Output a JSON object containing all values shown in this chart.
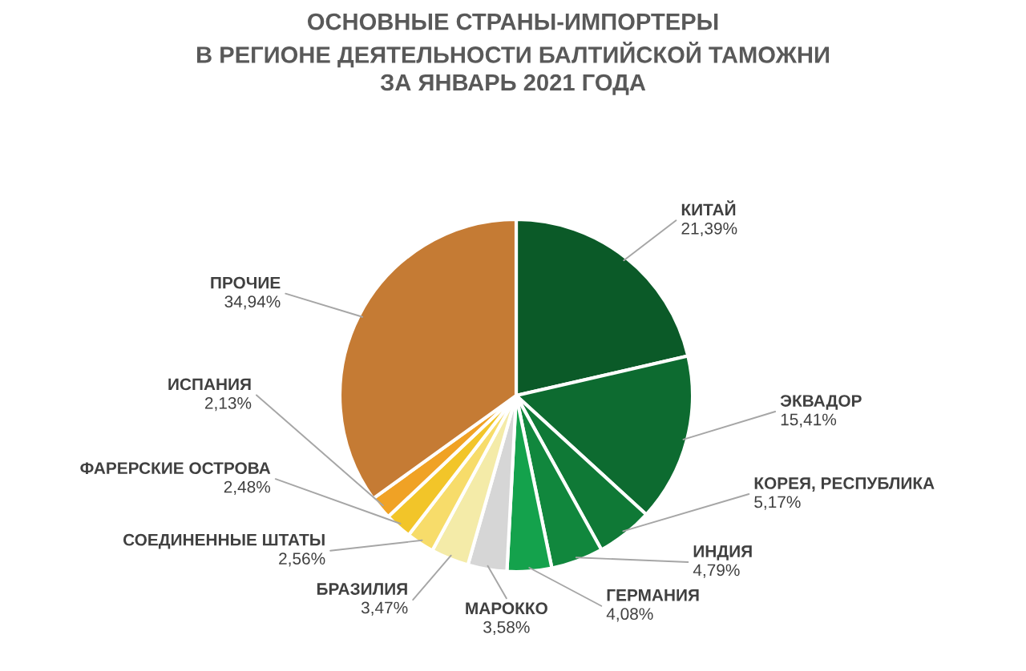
{
  "chart_data": {
    "type": "pie",
    "title": "ОСНОВНЫЕ СТРАНЫ-ИМПОРТЕРЫ\nВ РЕГИОНЕ ДЕЯТЕЛЬНОСТИ БАЛТИЙСКОЙ ТАМОЖНИ\nЗА ЯНВАРЬ 2021 ГОДА",
    "categories": [
      "КИТАЙ",
      "ЭКВАДОР",
      "КОРЕЯ, РЕСПУБЛИКА",
      "ИНДИЯ",
      "ГЕРМАНИЯ",
      "МАРОККО",
      "БРАЗИЛИЯ",
      "СОЕДИНЕННЫЕ ШТАТЫ",
      "ФАРЕРСКИЕ ОСТРОВА",
      "ИСПАНИЯ",
      "ПРОЧИЕ"
    ],
    "values": [
      21.39,
      15.41,
      5.17,
      4.79,
      4.08,
      3.58,
      3.47,
      2.56,
      2.48,
      2.13,
      34.94
    ],
    "value_labels": [
      "21,39%",
      "15,41%",
      "5,17%",
      "4,79%",
      "4,08%",
      "3,58%",
      "3,47%",
      "2,56%",
      "2,48%",
      "2,13%",
      "34,94%"
    ],
    "colors": [
      "#0b5a28",
      "#0d6b30",
      "#0f7936",
      "#11873d",
      "#14a24c",
      "#d6d6d6",
      "#f4eba8",
      "#f7dc6a",
      "#f2c529",
      "#f0a225",
      "#c57b34"
    ]
  }
}
